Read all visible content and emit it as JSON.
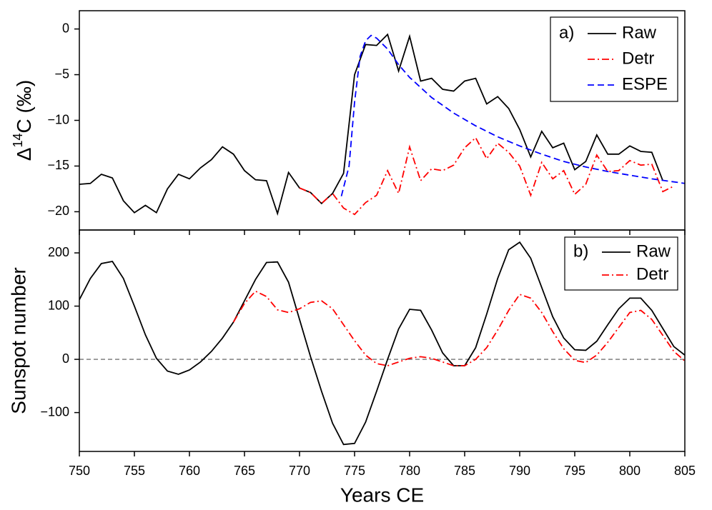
{
  "chart_data": [
    {
      "type": "line",
      "panel_label": "a)",
      "ylabel": {
        "symbol": "Δ",
        "superscript": "14",
        "text": "C (‰)"
      },
      "xlim": [
        750,
        805
      ],
      "ylim": [
        -22,
        2
      ],
      "yticks": [
        0,
        {
          "value": -5,
          "label": "−5"
        },
        {
          "value": -10,
          "label": "−10"
        },
        {
          "value": -15,
          "label": "−15"
        },
        {
          "value": -20,
          "label": "−20"
        }
      ],
      "legend": "upper right",
      "series": [
        {
          "name": "Raw",
          "color": "#000000",
          "dash": "solid",
          "x": [
            750,
            751,
            752,
            753,
            754,
            755,
            756,
            757,
            758,
            759,
            760,
            761,
            762,
            763,
            764,
            765,
            766,
            767,
            768,
            769,
            770,
            771,
            772,
            773,
            774,
            775,
            776,
            777,
            778,
            779,
            780,
            781,
            782,
            783,
            784,
            785,
            786,
            787,
            788,
            789,
            790,
            791,
            792,
            793,
            794,
            795,
            796,
            797,
            798,
            799,
            800,
            801,
            802,
            803
          ],
          "values": [
            -17.0,
            -16.9,
            -15.9,
            -16.3,
            -18.8,
            -20.1,
            -19.3,
            -20.1,
            -17.5,
            -15.9,
            -16.4,
            -15.2,
            -14.3,
            -12.9,
            -13.7,
            -15.5,
            -16.5,
            -16.6,
            -20.2,
            -15.7,
            -17.4,
            -17.9,
            -19.1,
            -18.0,
            -15.8,
            -5.0,
            -1.7,
            -1.8,
            -0.6,
            -4.6,
            -0.8,
            -5.7,
            -5.4,
            -6.6,
            -6.8,
            -5.7,
            -5.4,
            -8.2,
            -7.4,
            -8.7,
            -11.0,
            -14.0,
            -11.2,
            -13.0,
            -12.5,
            -15.4,
            -14.5,
            -11.6,
            -13.7,
            -13.7,
            -12.8,
            -13.4,
            -13.5,
            -16.6
          ]
        },
        {
          "name": "Detr",
          "color": "#ff0000",
          "dash": "dashdot",
          "x": [
            770,
            771,
            772,
            773,
            774,
            775,
            776,
            777,
            778,
            779,
            780,
            781,
            782,
            783,
            784,
            785,
            786,
            787,
            788,
            789,
            790,
            791,
            792,
            793,
            794,
            795,
            796,
            797,
            798,
            799,
            800,
            801,
            802,
            803,
            804
          ],
          "values": [
            -17.4,
            -17.9,
            -19.1,
            -18.0,
            -19.6,
            -20.3,
            -19.0,
            -18.2,
            -15.5,
            -18.0,
            -12.9,
            -16.6,
            -15.3,
            -15.5,
            -14.9,
            -13.0,
            -11.9,
            -14.2,
            -12.5,
            -13.5,
            -15.0,
            -18.2,
            -14.6,
            -16.4,
            -15.5,
            -18.1,
            -17.0,
            -13.8,
            -15.6,
            -15.5,
            -14.4,
            -14.9,
            -14.8,
            -17.8,
            -17.2
          ]
        },
        {
          "name": "ESPE",
          "color": "#0000ff",
          "dash": "dashed",
          "x": [
            773.8,
            774.5,
            775,
            775.5,
            776,
            776.5,
            777,
            778,
            779,
            780,
            782,
            784,
            786,
            788,
            790,
            792,
            794,
            796,
            798,
            800,
            802,
            805
          ],
          "values": [
            -18.3,
            -15.0,
            -8.0,
            -3.0,
            -1.3,
            -0.7,
            -1.0,
            -2.2,
            -3.9,
            -5.3,
            -7.5,
            -9.2,
            -10.6,
            -11.8,
            -12.8,
            -13.7,
            -14.5,
            -15.1,
            -15.6,
            -16.0,
            -16.4,
            -16.9
          ]
        }
      ]
    },
    {
      "type": "line",
      "panel_label": "b)",
      "ylabel": "Sunspot number",
      "xlabel": "Years CE",
      "xlim": [
        750,
        805
      ],
      "ylim": [
        -173,
        243
      ],
      "xticks": [
        750,
        755,
        760,
        765,
        770,
        775,
        780,
        785,
        790,
        795,
        800,
        805
      ],
      "yticks": [
        {
          "value": -100,
          "label": "−100"
        },
        0,
        100,
        200
      ],
      "hline": 0,
      "legend": "upper right",
      "series": [
        {
          "name": "Raw",
          "color": "#000000",
          "dash": "solid",
          "x": [
            750,
            751,
            752,
            753,
            754,
            755,
            756,
            757,
            758,
            759,
            760,
            761,
            762,
            763,
            764,
            765,
            766,
            767,
            768,
            769,
            770,
            771,
            772,
            773,
            774,
            775,
            776,
            777,
            778,
            779,
            780,
            781,
            782,
            783,
            784,
            785,
            786,
            787,
            788,
            789,
            790,
            791,
            792,
            793,
            794,
            795,
            796,
            797,
            798,
            799,
            800,
            801,
            802,
            803,
            804,
            805
          ],
          "values": [
            112,
            152,
            180,
            184,
            152,
            100,
            46,
            2,
            -22,
            -28,
            -20,
            -5,
            15,
            40,
            70,
            110,
            150,
            182,
            183,
            145,
            75,
            5,
            -60,
            -120,
            -160,
            -158,
            -118,
            -60,
            0,
            57,
            94,
            92,
            55,
            12,
            -12,
            -12,
            22,
            85,
            152,
            206,
            220,
            190,
            135,
            80,
            40,
            18,
            17,
            34,
            65,
            95,
            115,
            115,
            92,
            58,
            24,
            8
          ]
        },
        {
          "name": "Detr",
          "color": "#ff0000",
          "dash": "dashdot",
          "x": [
            764,
            765,
            766,
            767,
            768,
            769,
            770,
            771,
            772,
            773,
            774,
            775,
            776,
            777,
            778,
            779,
            780,
            781,
            782,
            783,
            784,
            785,
            786,
            787,
            788,
            789,
            790,
            791,
            792,
            793,
            794,
            795,
            796,
            797,
            798,
            799,
            800,
            801,
            802,
            803,
            804,
            805
          ],
          "values": [
            70,
            105,
            128,
            118,
            93,
            88,
            95,
            107,
            110,
            95,
            65,
            35,
            8,
            -8,
            -12,
            -5,
            2,
            5,
            2,
            -5,
            -12,
            -12,
            0,
            22,
            55,
            92,
            122,
            115,
            88,
            52,
            20,
            -2,
            -6,
            8,
            32,
            60,
            88,
            92,
            75,
            45,
            15,
            -3
          ]
        }
      ]
    }
  ]
}
